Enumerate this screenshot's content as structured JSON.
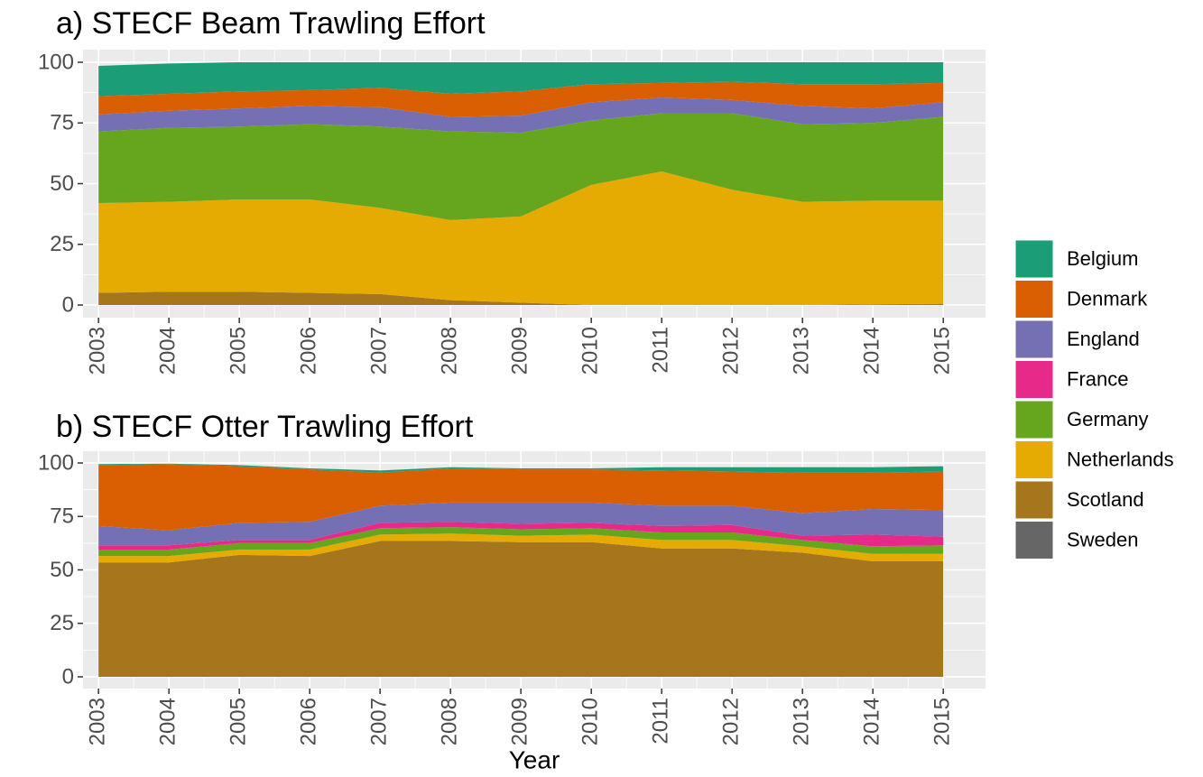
{
  "legend": [
    {
      "name": "Belgium",
      "color": "#1b9e77"
    },
    {
      "name": "Denmark",
      "color": "#d95f02"
    },
    {
      "name": "England",
      "color": "#7570b3"
    },
    {
      "name": "France",
      "color": "#e7298a"
    },
    {
      "name": "Germany",
      "color": "#66a61e"
    },
    {
      "name": "Netherlands",
      "color": "#e6ab02"
    },
    {
      "name": "Scotland",
      "color": "#a6761d"
    },
    {
      "name": "Sweden",
      "color": "#666666"
    }
  ],
  "chart_data": [
    {
      "type": "area",
      "stacked": true,
      "title": "a)  STECF Beam Trawling Effort",
      "x": [
        2003,
        2004,
        2005,
        2006,
        2007,
        2008,
        2009,
        2010,
        2011,
        2012,
        2013,
        2014,
        2015
      ],
      "xlim": [
        2002.78,
        2015.6
      ],
      "xticks": [
        2003,
        2004,
        2005,
        2006,
        2007,
        2008,
        2009,
        2010,
        2011,
        2012,
        2013,
        2014,
        2015
      ],
      "ylim": [
        -5.2,
        105.2
      ],
      "yticks": [
        0,
        25,
        50,
        75,
        100
      ],
      "grid": true,
      "series": [
        {
          "values": [
            12.5,
            12.5,
            12,
            11.5,
            10.5,
            13,
            12,
            9,
            8.5,
            8,
            9,
            9,
            8.5
          ]
        },
        {
          "values": [
            7.5,
            7,
            7,
            6.5,
            8,
            9.5,
            10,
            7.5,
            6,
            7.5,
            9,
            10,
            8
          ]
        },
        {
          "values": [
            7,
            7,
            7.5,
            7.5,
            8,
            6,
            7,
            7.5,
            6.5,
            5.5,
            7.5,
            6,
            6
          ]
        },
        {
          "values": [
            0,
            0,
            0,
            0,
            0,
            0,
            0,
            0,
            0,
            0,
            0,
            0,
            0
          ]
        },
        {
          "values": [
            29.5,
            30.5,
            30,
            31,
            33.5,
            36.5,
            34.5,
            26.5,
            24,
            31.5,
            32,
            32,
            34.5
          ]
        },
        {
          "values": [
            37,
            37,
            38,
            38.5,
            35.5,
            33,
            35.5,
            49.5,
            55,
            47.5,
            42.5,
            42.7,
            42.5
          ]
        },
        {
          "values": [
            5,
            5.5,
            5.5,
            5,
            4.5,
            2,
            1,
            0,
            0,
            0,
            0,
            0.3,
            0.5
          ]
        },
        {
          "values": [
            0,
            0,
            0,
            0,
            0,
            0,
            0,
            0,
            0,
            0,
            0,
            0,
            0
          ]
        }
      ]
    },
    {
      "type": "area",
      "stacked": true,
      "title": "b)  STECF Otter Trawling Effort",
      "x_label": "Year",
      "x": [
        2003,
        2004,
        2005,
        2006,
        2007,
        2008,
        2009,
        2010,
        2011,
        2012,
        2013,
        2014,
        2015
      ],
      "xlim": [
        2002.78,
        2015.6
      ],
      "xticks": [
        2003,
        2004,
        2005,
        2006,
        2007,
        2008,
        2009,
        2010,
        2011,
        2012,
        2013,
        2014,
        2015
      ],
      "ylim": [
        -5.5,
        105.5
      ],
      "yticks": [
        0,
        25,
        50,
        75,
        100
      ],
      "grid": true,
      "series": [
        {
          "values": [
            0.5,
            0.2,
            0.5,
            0.5,
            1,
            0.5,
            0.5,
            0.5,
            1.5,
            2,
            2.5,
            2.5,
            2.5
          ]
        },
        {
          "values": [
            28.5,
            31,
            26.5,
            24.5,
            15.5,
            16,
            15.5,
            15.5,
            16.5,
            16,
            19,
            17,
            18
          ]
        },
        {
          "values": [
            9,
            7,
            8,
            8.5,
            8,
            9,
            10,
            9.5,
            9.5,
            9,
            10.5,
            12,
            12.5
          ]
        },
        {
          "values": [
            2,
            2,
            1.5,
            1.5,
            2.5,
            2.5,
            2.5,
            2.5,
            3,
            3.5,
            2,
            5.5,
            4
          ]
        },
        {
          "values": [
            3,
            3,
            3,
            3,
            3,
            3,
            3,
            3,
            3.5,
            3.5,
            3,
            3.5,
            4
          ]
        },
        {
          "values": [
            3,
            3,
            2.5,
            3,
            3,
            3.5,
            3,
            3.5,
            4,
            4,
            3,
            3.5,
            3.5
          ]
        },
        {
          "values": [
            53.5,
            53.5,
            57,
            56.5,
            63.5,
            63.5,
            63,
            63,
            60,
            60,
            58,
            54,
            54
          ]
        },
        {
          "values": [
            0,
            0,
            0,
            0,
            0,
            0,
            0,
            0,
            0,
            0,
            0,
            0,
            0
          ]
        }
      ]
    }
  ]
}
